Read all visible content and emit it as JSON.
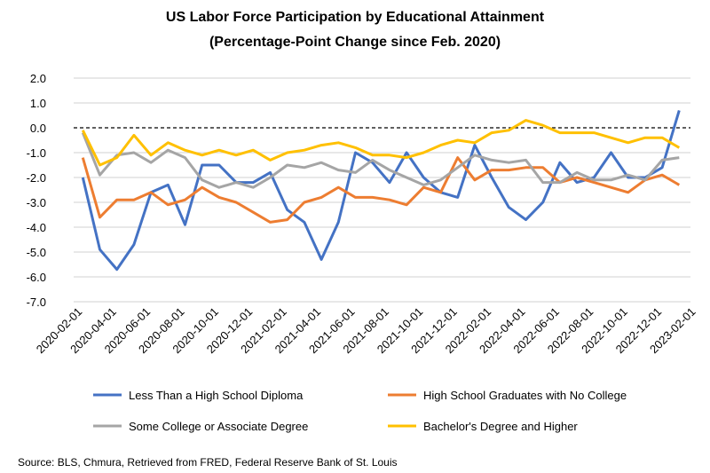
{
  "chart_data": {
    "type": "line",
    "title": "US Labor Force Participation by Educational Attainment",
    "subtitle": "(Percentage-Point Change since Feb. 2020)",
    "xlabel": "",
    "ylabel": "",
    "ylim": [
      -7.0,
      2.0
    ],
    "yticks": [
      "2.0",
      "1.0",
      "0.0",
      "-1.0",
      "-2.0",
      "-3.0",
      "-4.0",
      "-5.0",
      "-6.0",
      "-7.0"
    ],
    "ytick_values": [
      2,
      1,
      0,
      -1,
      -2,
      -3,
      -4,
      -5,
      -6,
      -7
    ],
    "xtick_labels": [
      "2020-02-01",
      "2020-04-01",
      "2020-06-01",
      "2020-08-01",
      "2020-10-01",
      "2020-12-01",
      "2021-02-01",
      "2021-04-01",
      "2021-06-01",
      "2021-08-01",
      "2021-10-01",
      "2021-12-01",
      "2022-02-01",
      "2022-04-01",
      "2022-06-01",
      "2022-08-01",
      "2022-10-01",
      "2022-12-01",
      "2023-02-01"
    ],
    "grid": true,
    "reference_line": 0,
    "legend_position": "bottom",
    "series": [
      {
        "name": "Less Than a High School Diploma",
        "color": "#4472C4",
        "values": [
          -2.0,
          -4.9,
          -5.7,
          -4.7,
          -2.6,
          -2.3,
          -3.9,
          -1.5,
          -1.5,
          -2.2,
          -2.2,
          -1.8,
          -3.3,
          -3.8,
          -5.3,
          -3.8,
          -1.0,
          -1.4,
          -2.2,
          -1.0,
          -2.0,
          -2.6,
          -2.8,
          -0.7,
          -2.0,
          -3.2,
          -3.7,
          -3.0,
          -1.4,
          -2.2,
          -2.0,
          -1.0,
          -2.0,
          -2.0,
          -1.6,
          0.7
        ]
      },
      {
        "name": "High School Graduates with No College",
        "color": "#ED7D31",
        "values": [
          -1.2,
          -3.6,
          -2.9,
          -2.9,
          -2.6,
          -3.1,
          -2.9,
          -2.4,
          -2.8,
          -3.0,
          -3.4,
          -3.8,
          -3.7,
          -3.0,
          -2.8,
          -2.4,
          -2.8,
          -2.8,
          -2.9,
          -3.1,
          -2.4,
          -2.6,
          -1.2,
          -2.1,
          -1.7,
          -1.7,
          -1.6,
          -1.6,
          -2.2,
          -2.0,
          -2.2,
          -2.4,
          -2.6,
          -2.1,
          -1.9,
          -2.3
        ]
      },
      {
        "name": "Some College or Associate Degree",
        "color": "#A5A5A5",
        "values": [
          -0.2,
          -1.9,
          -1.1,
          -1.0,
          -1.4,
          -0.9,
          -1.2,
          -2.1,
          -2.4,
          -2.2,
          -2.4,
          -2.0,
          -1.5,
          -1.6,
          -1.4,
          -1.7,
          -1.8,
          -1.3,
          -1.7,
          -2.0,
          -2.3,
          -2.1,
          -1.6,
          -1.1,
          -1.3,
          -1.4,
          -1.3,
          -2.2,
          -2.2,
          -1.8,
          -2.1,
          -2.1,
          -1.9,
          -2.1,
          -1.3,
          -1.2
        ]
      },
      {
        "name": "Bachelor's Degree and Higher",
        "color": "#FFC000",
        "values": [
          -0.1,
          -1.5,
          -1.2,
          -0.3,
          -1.1,
          -0.6,
          -0.9,
          -1.1,
          -0.9,
          -1.1,
          -0.9,
          -1.3,
          -1.0,
          -0.9,
          -0.7,
          -0.6,
          -0.8,
          -1.1,
          -1.1,
          -1.2,
          -1.0,
          -0.7,
          -0.5,
          -0.6,
          -0.2,
          -0.1,
          0.3,
          0.1,
          -0.2,
          -0.2,
          -0.2,
          -0.4,
          -0.6,
          -0.4,
          -0.4,
          -0.8
        ]
      }
    ]
  },
  "source": "Source: BLS, Chmura, Retrieved from FRED, Federal Reserve Bank of St. Louis"
}
